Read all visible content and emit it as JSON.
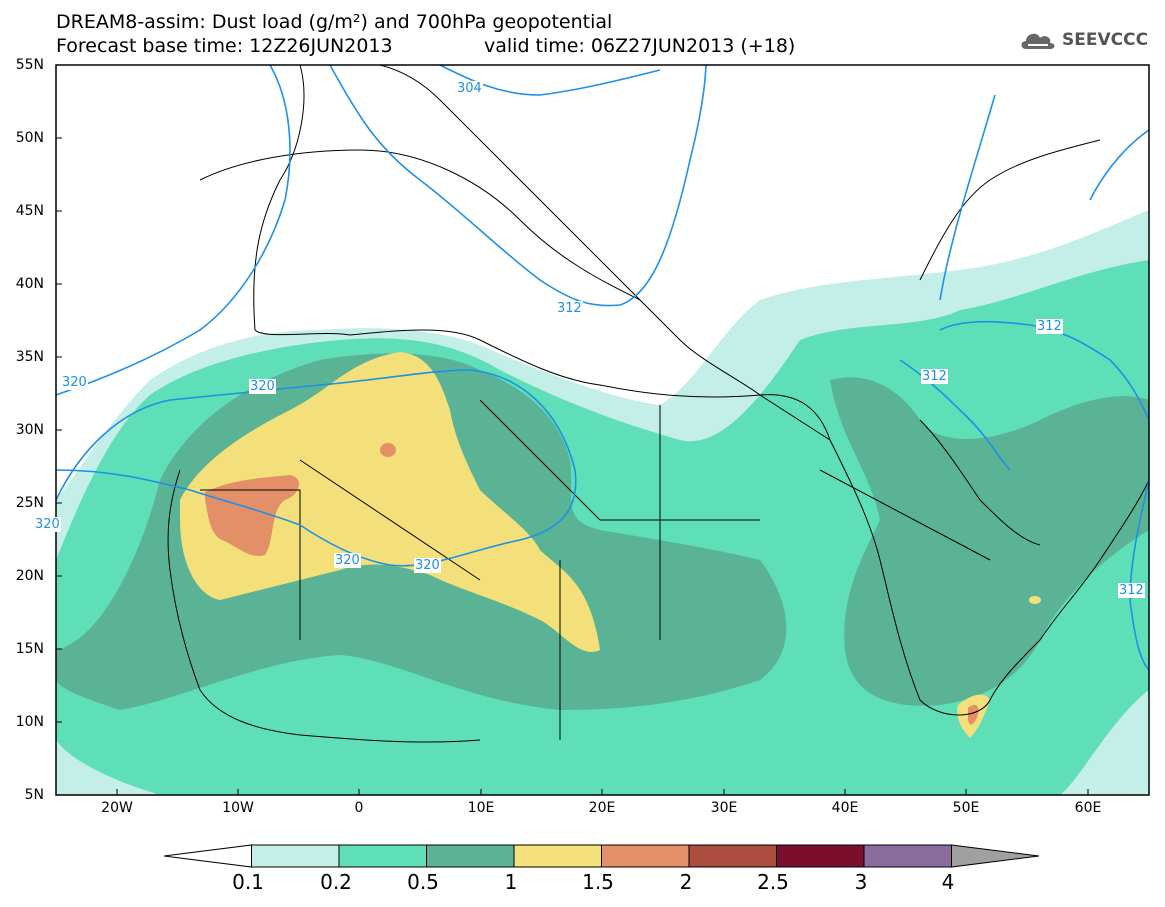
{
  "title": {
    "line1": "DREAM8-assim: Dust load (g/m²) and 700hPa geopotential",
    "line2": "Forecast base time: 12Z26JUN2013",
    "line2b": "valid time: 06Z27JUN2013 (+18)"
  },
  "logo": {
    "icon": "cloud-icon",
    "text": "SEEVCCC"
  },
  "lat_labels": [
    "55N",
    "50N",
    "45N",
    "40N",
    "35N",
    "30N",
    "25N",
    "20N",
    "15N",
    "10N",
    "5N"
  ],
  "lon_labels": [
    "20W",
    "10W",
    "0",
    "10E",
    "20E",
    "30E",
    "40E",
    "50E",
    "60E"
  ],
  "contour_labels": [
    "304",
    "312",
    "312",
    "312",
    "312",
    "320",
    "320",
    "320",
    "320",
    "320"
  ],
  "colorbar": {
    "ticks": [
      "0.1",
      "0.2",
      "0.5",
      "1",
      "1.5",
      "2",
      "2.5",
      "3",
      "4"
    ],
    "colors": [
      "#ffffff",
      "#c4efe8",
      "#5fdfb8",
      "#5ab394",
      "#f3e07a",
      "#e39069",
      "#ad4d40",
      "#7a0e2c",
      "#8b6c9c",
      "#a0a0a0"
    ]
  },
  "colors": {
    "contour": "#1e90e6",
    "dust_01": "#c4efe8",
    "dust_02": "#5fdfb8",
    "dust_05": "#5ab394",
    "dust_1": "#f3e07a",
    "dust_15": "#e39069"
  }
}
